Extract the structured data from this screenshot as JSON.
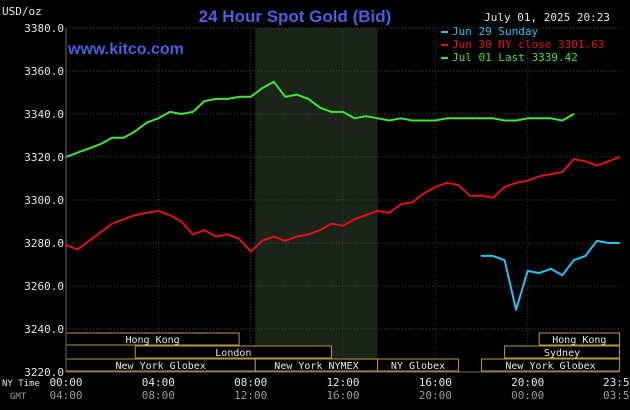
{
  "chart_data": {
    "type": "line",
    "title": "24 Hour Spot Gold (Bid)",
    "units_label": "USD/oz",
    "timestamp": "July 01, 2025 20:23",
    "watermark": "www.kitco.com",
    "ylim": [
      3220,
      3380
    ],
    "y_ticks": [
      "3380.0",
      "3360.0",
      "3340.0",
      "3320.0",
      "3300.0",
      "3280.0",
      "3260.0",
      "3240.0",
      "3220.0"
    ],
    "x_time_label_ny": "NY Time",
    "x_time_label_gmt": "GMT",
    "x_ticks_ny": [
      "00:00",
      "04:00",
      "08:00",
      "12:00",
      "16:00",
      "20:00",
      "23:59"
    ],
    "x_ticks_gmt": [
      "04:00",
      "08:00",
      "12:00",
      "16:00",
      "20:00",
      "00:00",
      "03:59"
    ],
    "x_tick_hours": [
      0,
      4,
      8,
      12,
      16,
      20,
      23.983
    ],
    "shaded_band_hours": [
      8.2,
      13.5
    ],
    "legend": [
      {
        "label": "Jun 29 Sunday",
        "color": "#22c4f0"
      },
      {
        "label": "Jun 30 NY close 3301.63",
        "color": "#e0101a"
      },
      {
        "label": "Jul 01 Last 3339.42",
        "color": "#3ee830"
      }
    ],
    "series": [
      {
        "name": "Jun 29 Sunday",
        "color": "#22c4f0",
        "x": [
          18,
          18.5,
          19,
          19.5,
          20,
          20.5,
          21,
          21.5,
          22,
          22.5,
          23,
          23.5,
          23.98
        ],
        "y": [
          3274,
          3274,
          3272,
          3249,
          3267,
          3266,
          3268,
          3265,
          3272,
          3274,
          3281,
          3280,
          3280
        ]
      },
      {
        "name": "Jun 30 NY close 3301.63",
        "color": "#e0101a",
        "x": [
          0,
          0.5,
          1,
          1.5,
          2,
          2.5,
          3,
          3.5,
          4,
          4.5,
          5,
          5.5,
          6,
          6.5,
          7,
          7.5,
          8,
          8.5,
          9,
          9.5,
          10,
          10.5,
          11,
          11.5,
          12,
          12.5,
          13,
          13.5,
          14,
          14.5,
          15,
          15.5,
          16,
          16.5,
          17,
          17.5,
          18,
          18.5,
          19,
          19.5,
          20,
          20.5,
          21,
          21.5,
          22,
          22.5,
          23,
          23.5,
          23.98
        ],
        "y": [
          3279,
          3277,
          3281,
          3285,
          3289,
          3291,
          3293,
          3294,
          3295,
          3293,
          3290,
          3284,
          3286,
          3283,
          3284,
          3282,
          3276,
          3281,
          3283,
          3281,
          3283,
          3284,
          3286,
          3289,
          3288,
          3291,
          3293,
          3295,
          3294,
          3298,
          3299,
          3303,
          3306,
          3308,
          3307,
          3302,
          3302,
          3301,
          3306,
          3308,
          3309,
          3311,
          3312,
          3313,
          3319,
          3318,
          3316,
          3318,
          3320
        ]
      },
      {
        "name": "Jul 01 Last 3339.42",
        "color": "#3ee830",
        "x": [
          0,
          0.5,
          1,
          1.5,
          2,
          2.5,
          3,
          3.5,
          4,
          4.5,
          5,
          5.5,
          6,
          6.5,
          7,
          7.5,
          8,
          8.5,
          9,
          9.5,
          10,
          10.5,
          11,
          11.5,
          12,
          12.5,
          13,
          13.5,
          14,
          14.5,
          15,
          15.5,
          16,
          16.5,
          17,
          17.5,
          18,
          18.5,
          19,
          19.5,
          20,
          20.5,
          21,
          21.5,
          22
        ],
        "y": [
          3320,
          3322,
          3324,
          3326,
          3329,
          3329,
          3332,
          3336,
          3338,
          3341,
          3340,
          3341,
          3346,
          3347,
          3347,
          3348,
          3348,
          3352,
          3355,
          3348,
          3349,
          3347,
          3343,
          3341,
          3341,
          3338,
          3339,
          3338,
          3337,
          3338,
          3337,
          3337,
          3337,
          3338,
          3338,
          3338,
          3338,
          3338,
          3337,
          3337,
          3338,
          3338,
          3338,
          3337,
          3340
        ]
      }
    ],
    "sessions": [
      {
        "label": "Hong Kong",
        "start": 0,
        "end": 7.5,
        "row": 0
      },
      {
        "label": "Hong Kong",
        "start": 20.5,
        "end": 23.98,
        "row": 0
      },
      {
        "label": "London",
        "start": 3,
        "end": 11.5,
        "row": 1
      },
      {
        "label": "Sydney",
        "start": 19,
        "end": 23.98,
        "row": 1
      },
      {
        "label": "New York Globex",
        "start": 0,
        "end": 8.2,
        "row": 2
      },
      {
        "label": "New York NYMEX",
        "start": 8.2,
        "end": 13.5,
        "row": 2
      },
      {
        "label": "NY Globex",
        "start": 13.5,
        "end": 17,
        "row": 2
      },
      {
        "label": "New York Globex",
        "start": 18,
        "end": 23.98,
        "row": 2
      }
    ]
  }
}
